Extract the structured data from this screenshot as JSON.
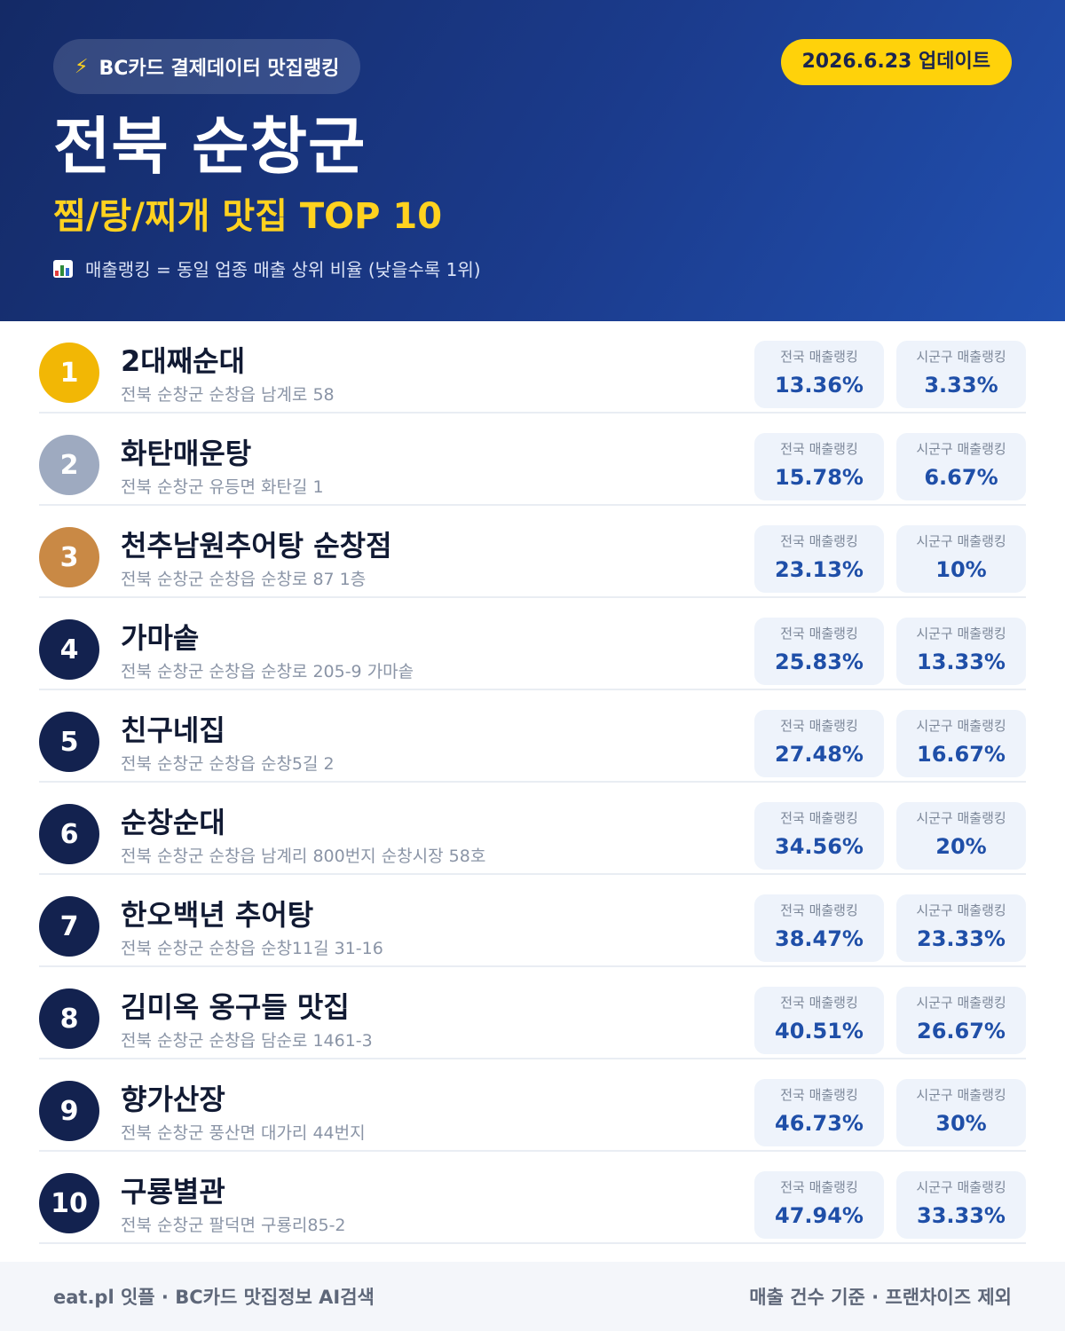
{
  "header": {
    "brand_label": "BC카드 결제데이터 맛집랭킹",
    "update_label": "2026.6.23 업데이트",
    "title": "전북 순창군",
    "subtitle": "찜/탕/찌개 맛집 TOP 10",
    "note": "매출랭킹 = 동일 업종 매출 상위 비율 (낮을수록 1위)",
    "brand_icon": "lightning-icon",
    "note_icon": "bar-chart-icon"
  },
  "stat_labels": {
    "national": "전국 매출랭킹",
    "local": "시군구 매출랭킹"
  },
  "colors": {
    "gold": "#f2b705",
    "silver": "#9eaac0",
    "bronze": "#c98945",
    "navy": "#13224f",
    "accent_yellow": "#ffd20a",
    "value_blue": "#1f4fa8"
  },
  "restaurants": [
    {
      "rank": "1",
      "name": "2대째순대",
      "address": "전북 순창군 순창읍 남계로 58",
      "national": "13.36%",
      "local": "3.33%"
    },
    {
      "rank": "2",
      "name": "화탄매운탕",
      "address": "전북 순창군 유등면 화탄길 1",
      "national": "15.78%",
      "local": "6.67%"
    },
    {
      "rank": "3",
      "name": "천추남원추어탕 순창점",
      "address": "전북 순창군 순창읍 순창로 87 1층",
      "national": "23.13%",
      "local": "10%"
    },
    {
      "rank": "4",
      "name": "가마솥",
      "address": "전북 순창군 순창읍 순창로 205-9 가마솥",
      "national": "25.83%",
      "local": "13.33%"
    },
    {
      "rank": "5",
      "name": "친구네집",
      "address": "전북 순창군 순창읍 순창5길 2",
      "national": "27.48%",
      "local": "16.67%"
    },
    {
      "rank": "6",
      "name": "순창순대",
      "address": "전북 순창군 순창읍 남계리 800번지 순창시장 58호",
      "national": "34.56%",
      "local": "20%"
    },
    {
      "rank": "7",
      "name": "한오백년 추어탕",
      "address": "전북 순창군 순창읍 순창11길 31-16",
      "national": "38.47%",
      "local": "23.33%"
    },
    {
      "rank": "8",
      "name": "김미옥 옹구들 맛집",
      "address": "전북 순창군 순창읍 담순로 1461-3",
      "national": "40.51%",
      "local": "26.67%"
    },
    {
      "rank": "9",
      "name": "향가산장",
      "address": "전북 순창군 풍산면 대가리 44번지",
      "national": "46.73%",
      "local": "30%"
    },
    {
      "rank": "10",
      "name": "구룡별관",
      "address": "전북 순창군 팔덕면 구룡리85-2",
      "national": "47.94%",
      "local": "33.33%"
    }
  ],
  "footer": {
    "left": "eat.pl 잇플 · BC카드 맛집정보 AI검색",
    "right": "매출 건수 기준 · 프랜차이즈 제외"
  }
}
